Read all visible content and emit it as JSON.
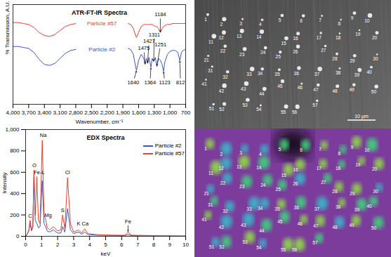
{
  "chart_data": [
    {
      "type": "line",
      "title": "ATR-FT-IR Spectra",
      "x_label": "Wavenumber, cm⁻¹",
      "y_label": "% Transmission, A.U.",
      "xlim": [
        4000,
        700
      ],
      "xticks": [
        4000,
        3700,
        3400,
        3100,
        2800,
        2500,
        2200,
        1900,
        1600,
        1300,
        1000,
        700
      ],
      "ylim": [
        0,
        100
      ],
      "tick_labels": "x",
      "grid": false,
      "x": [
        4000,
        3900,
        3800,
        3700,
        3600,
        3500,
        3400,
        3300,
        3200,
        3100,
        3000,
        2900,
        2800,
        2300,
        1800,
        1750,
        1700,
        1650,
        1640,
        1600,
        1550,
        1500,
        1475,
        1450,
        1427,
        1400,
        1364,
        1340,
        1311,
        1280,
        1251,
        1220,
        1184,
        1150,
        1123,
        1100,
        1050,
        1000,
        950,
        900,
        850,
        812,
        780,
        750,
        700
      ],
      "series": [
        {
          "name": "Particle #57",
          "color": "#e8412c",
          "values": [
            82,
            82,
            81,
            80,
            77,
            72,
            69,
            68,
            70,
            74,
            78,
            80,
            81,
            null,
            81,
            80,
            76,
            68,
            67,
            72,
            78,
            80,
            80,
            80,
            80,
            80,
            80,
            80,
            79,
            78,
            78,
            76,
            72,
            76,
            78,
            79,
            80,
            80,
            81,
            81,
            81,
            81,
            81,
            81,
            81
          ]
        },
        {
          "name": "Particle #2",
          "color": "#3e54c6",
          "values": [
            58,
            58,
            57,
            56,
            52,
            45,
            40,
            39,
            41,
            46,
            51,
            54,
            55,
            null,
            56,
            55,
            50,
            36,
            34,
            44,
            50,
            46,
            40,
            46,
            41,
            47,
            37,
            46,
            43,
            47,
            38,
            46,
            44,
            40,
            33,
            42,
            50,
            53,
            54,
            54,
            52,
            44,
            52,
            54,
            55
          ]
        }
      ],
      "annotations": [
        {
          "label": "1184",
          "x": 1184,
          "y": 90,
          "peak": 1184,
          "series": "Particle #57"
        },
        {
          "label": "1640",
          "x": 1700,
          "y": 22,
          "peak": 1640,
          "series": "Particle #2"
        },
        {
          "label": "1475",
          "x": 1500,
          "y": 56,
          "peak": 1475,
          "series": "Particle #2"
        },
        {
          "label": "1427",
          "x": 1400,
          "y": 63,
          "peak": 1427,
          "series": "Particle #2"
        },
        {
          "label": "1311",
          "x": 1300,
          "y": 70,
          "peak": 1311,
          "series": "Particle #2"
        },
        {
          "label": "1364",
          "x": 1380,
          "y": 22,
          "peak": 1364,
          "series": "Particle #2"
        },
        {
          "label": "1251",
          "x": 1180,
          "y": 60,
          "peak": 1251,
          "series": "Particle #2"
        },
        {
          "label": "1123",
          "x": 1100,
          "y": 22,
          "peak": 1123,
          "series": "Particle #2"
        },
        {
          "label": "812",
          "x": 800,
          "y": 22,
          "peak": 812,
          "series": "Particle #2"
        }
      ]
    },
    {
      "type": "line",
      "title": "EDX Spectra",
      "x_label": "keV",
      "y_label": "Intensity",
      "xlim": [
        0,
        10
      ],
      "xticks": [
        0,
        1,
        2,
        3,
        4,
        5,
        6,
        7,
        8,
        9,
        10
      ],
      "ylim": [
        0,
        1000
      ],
      "yticks": [
        0,
        200,
        400,
        600,
        800,
        1000
      ],
      "grid": false,
      "legend": "top-right",
      "x": [
        0,
        0.1,
        0.2,
        0.28,
        0.36,
        0.45,
        0.52,
        0.6,
        0.7,
        0.8,
        0.9,
        1.04,
        1.15,
        1.25,
        1.35,
        1.5,
        1.74,
        2.0,
        2.2,
        2.31,
        2.45,
        2.62,
        2.8,
        3.0,
        3.31,
        3.5,
        3.69,
        3.9,
        4.5,
        5.5,
        6.2,
        6.4,
        6.6,
        7.5,
        8.5,
        10
      ],
      "series": [
        {
          "name": "Particle #2",
          "color": "#3e54c6",
          "values": [
            0,
            20,
            50,
            130,
            50,
            80,
            560,
            150,
            120,
            80,
            90,
            520,
            120,
            90,
            50,
            40,
            60,
            30,
            30,
            90,
            40,
            260,
            60,
            25,
            40,
            20,
            40,
            15,
            10,
            8,
            6,
            15,
            6,
            5,
            4,
            2
          ]
        },
        {
          "name": "Particle #57",
          "color": "#e8412c",
          "values": [
            0,
            20,
            60,
            150,
            60,
            100,
            620,
            200,
            560,
            150,
            120,
            900,
            200,
            160,
            80,
            60,
            90,
            50,
            60,
            200,
            70,
            550,
            120,
            40,
            60,
            30,
            70,
            25,
            15,
            10,
            10,
            40,
            10,
            8,
            5,
            3
          ]
        }
      ],
      "annotations": [
        {
          "label": "C",
          "x": 0.28,
          "y": 190
        },
        {
          "label": "O",
          "x": 0.55,
          "y": 665
        },
        {
          "label": "Fe-L",
          "x": 0.85,
          "y": 600
        },
        {
          "label": "Na",
          "x": 1.1,
          "y": 945
        },
        {
          "label": "Mg",
          "x": 1.4,
          "y": 200
        },
        {
          "label": "S",
          "x": 2.31,
          "y": 245
        },
        {
          "label": "Cl",
          "x": 2.62,
          "y": 595
        },
        {
          "label": "K",
          "x": 3.31,
          "y": 115
        },
        {
          "label": "Ca",
          "x": 3.72,
          "y": 115
        },
        {
          "label": "Fe",
          "x": 6.4,
          "y": 140,
          "peak": 6.4,
          "series": "Particle #57"
        }
      ]
    }
  ],
  "sem_image": {
    "particle_labels": [
      "1",
      "2",
      "3",
      "4",
      "5",
      "6",
      "7",
      "8",
      "9",
      "10",
      "11",
      "12",
      "13",
      "14",
      "15",
      "16",
      "17",
      "18",
      "19",
      "20",
      "21",
      "22",
      "23",
      "24",
      "25",
      "26",
      "27",
      "28",
      "29",
      "30",
      "31",
      "32",
      "33",
      "34",
      "35",
      "36",
      "37",
      "38",
      "39",
      "40",
      "41",
      "42",
      "43",
      "44",
      "45",
      "46",
      "47",
      "48",
      "49",
      "50",
      "51",
      "52",
      "53",
      "54",
      "55",
      "56",
      "57"
    ],
    "scale_bar": "10 μm"
  },
  "chemical_map": {
    "particle_labels": [
      "1",
      "2",
      "3",
      "4",
      "5",
      "6",
      "7",
      "8",
      "9",
      "10",
      "11",
      "12",
      "13",
      "14",
      "15",
      "16",
      "17",
      "18",
      "19",
      "20",
      "21",
      "22",
      "23",
      "24",
      "25",
      "26",
      "27",
      "28",
      "29",
      "30",
      "31",
      "32",
      "33",
      "34",
      "35",
      "36",
      "37",
      "38",
      "39",
      "40",
      "41",
      "42",
      "43",
      "44",
      "45",
      "46",
      "47",
      "48",
      "49",
      "50",
      "51",
      "52",
      "53",
      "54",
      "55",
      "56",
      "57"
    ]
  }
}
